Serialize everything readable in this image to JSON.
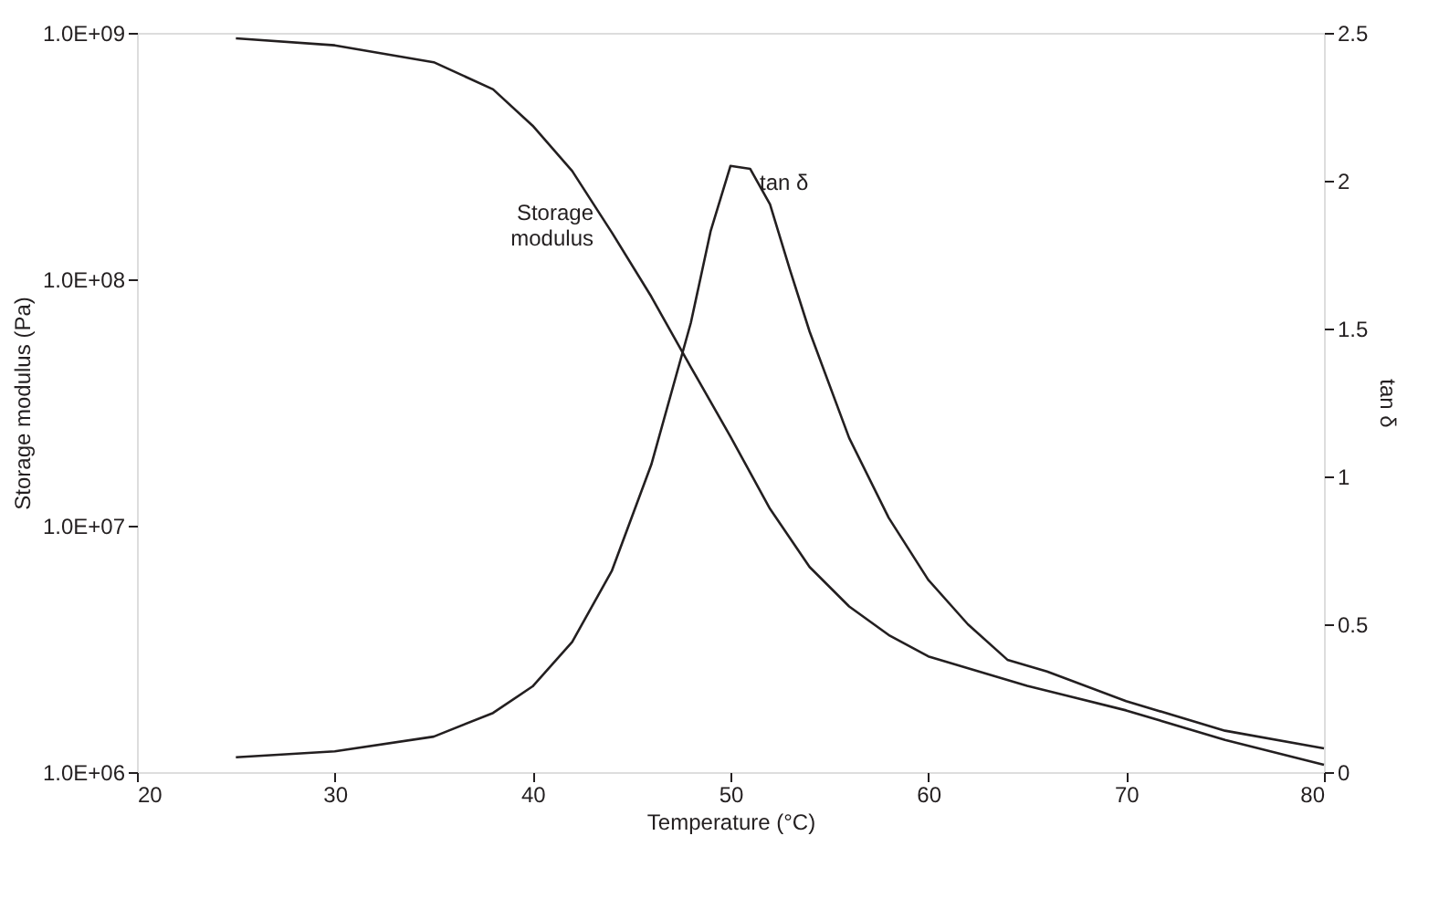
{
  "chart_data": {
    "type": "line",
    "xlabel": "Temperature (°C)",
    "ylabel": "Storage modulus (Pa)",
    "y2label": "tan δ",
    "xlim": [
      20,
      80
    ],
    "xticks": [
      20,
      30,
      40,
      50,
      60,
      70,
      80
    ],
    "ylim": [
      1000000,
      1000000000
    ],
    "log": "y",
    "yticks": [
      {
        "value": 1000000,
        "label": "1.0E+06"
      },
      {
        "value": 10000000,
        "label": "1.0E+07"
      },
      {
        "value": 100000000,
        "label": "1.0E+08"
      },
      {
        "value": 1000000000,
        "label": "1.0E+09"
      }
    ],
    "y2lim": [
      0,
      2.5
    ],
    "y2ticks": [
      0,
      0.5,
      1,
      1.5,
      2,
      2.5
    ],
    "grid": false,
    "marker": "none",
    "line_style": "solid",
    "series": [
      {
        "name": "Storage modulus",
        "color": "#231f20",
        "x": [
          25,
          30,
          35,
          38,
          40,
          42,
          44,
          46,
          48,
          50,
          52,
          54,
          56,
          58,
          60,
          65,
          70,
          75,
          80
        ],
        "values": [
          950000000,
          890000000,
          760000000,
          590000000,
          420000000,
          275000000,
          155000000,
          85000000,
          44000000,
          23000000,
          11700000,
          6800000,
          4700000,
          3600000,
          2950000,
          2240000,
          1780000,
          1350000,
          1070000
        ]
      },
      {
        "name": "tan δ",
        "color": "#231f20",
        "axis": "y2",
        "x": [
          25,
          30,
          35,
          38,
          40,
          42,
          44,
          46,
          48,
          49,
          50,
          51,
          52,
          53,
          54,
          56,
          58,
          60,
          62,
          64,
          66,
          70,
          75,
          80
        ],
        "values": [
          0.05,
          0.07,
          0.12,
          0.2,
          0.29,
          0.44,
          0.68,
          1.04,
          1.52,
          1.83,
          2.05,
          2.04,
          1.92,
          1.7,
          1.49,
          1.13,
          0.86,
          0.65,
          0.5,
          0.38,
          0.34,
          0.24,
          0.14,
          0.08
        ]
      }
    ]
  }
}
